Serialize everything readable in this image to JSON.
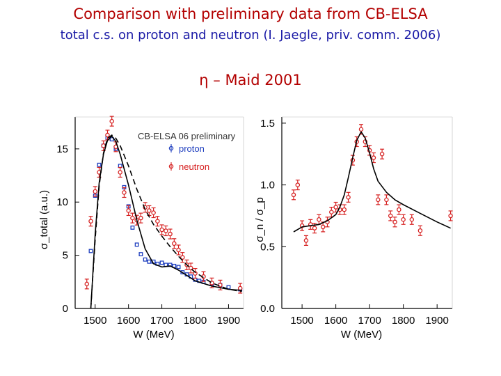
{
  "header": {
    "title": "Comparison with preliminary data from CB-ELSA",
    "subtitle": "total c.s. on proton and neutron (I. Jaegle, priv. comm. 2006)",
    "model_label": "η – Maid 2001"
  },
  "chart_data": [
    {
      "type": "scatter",
      "annotation": "CB-ELSA 06 preliminary",
      "xlabel": "W (MeV)",
      "ylabel": "σ_total (a.u.)",
      "xlim": [
        1440,
        1945
      ],
      "ylim": [
        0,
        18
      ],
      "x_ticks": [
        "1500",
        "1600",
        "1700",
        "1800",
        "1900"
      ],
      "y_ticks": [
        "0",
        "5",
        "10",
        "15"
      ],
      "legend": "top-right",
      "series": [
        {
          "name": "proton",
          "color": "#1f3fbf",
          "marker": "square",
          "x": [
            1487,
            1500,
            1512,
            1525,
            1537,
            1550,
            1562,
            1575,
            1587,
            1600,
            1612,
            1625,
            1637,
            1650,
            1662,
            1675,
            1687,
            1700,
            1712,
            1725,
            1737,
            1750,
            1762,
            1775,
            1787,
            1800,
            1812,
            1825,
            1850,
            1875,
            1900,
            1935
          ],
          "y": [
            5.4,
            10.6,
            13.5,
            15.3,
            16.0,
            15.9,
            15.0,
            13.4,
            11.4,
            9.6,
            7.6,
            6.0,
            5.1,
            4.6,
            4.4,
            4.4,
            4.2,
            4.3,
            4.1,
            4.1,
            4.0,
            3.9,
            3.4,
            3.2,
            3.0,
            2.7,
            2.6,
            2.5,
            2.3,
            2.2,
            2.0,
            1.8
          ]
        },
        {
          "name": "neutron",
          "color": "#d62020",
          "marker": "circle",
          "x": [
            1475,
            1487,
            1500,
            1512,
            1525,
            1537,
            1550,
            1562,
            1575,
            1587,
            1600,
            1612,
            1625,
            1637,
            1650,
            1662,
            1675,
            1687,
            1700,
            1712,
            1725,
            1737,
            1750,
            1762,
            1775,
            1787,
            1800,
            1825,
            1850,
            1875,
            1935
          ],
          "y": [
            2.3,
            8.2,
            11.0,
            12.8,
            15.3,
            16.3,
            17.6,
            15.2,
            12.8,
            10.9,
            9.2,
            8.5,
            8.3,
            8.5,
            9.5,
            9.2,
            9.0,
            8.2,
            7.4,
            7.3,
            7.0,
            6.1,
            5.5,
            4.8,
            4.1,
            3.8,
            3.3,
            3.0,
            2.4,
            2.2,
            1.9
          ]
        },
        {
          "name": "",
          "style": "solid",
          "color": "#000000",
          "x": [
            1487,
            1500,
            1512,
            1525,
            1537,
            1550,
            1562,
            1575,
            1600,
            1625,
            1650,
            1675,
            1700,
            1725,
            1750,
            1775,
            1800,
            1850,
            1900,
            1940
          ],
          "y": [
            0.0,
            7.0,
            11.8,
            14.5,
            15.8,
            16.2,
            15.7,
            14.5,
            11.6,
            8.3,
            5.6,
            4.2,
            3.9,
            4.0,
            3.6,
            3.1,
            2.6,
            2.1,
            1.8,
            1.7
          ]
        },
        {
          "name": "",
          "style": "dashed",
          "color": "#000000",
          "x": [
            1487,
            1500,
            1512,
            1525,
            1537,
            1550,
            1562,
            1575,
            1600,
            1625,
            1650,
            1675,
            1700,
            1725,
            1750,
            1775,
            1800,
            1850,
            1900,
            1940
          ],
          "y": [
            0.0,
            6.5,
            11.5,
            14.6,
            16.0,
            16.3,
            16.0,
            15.3,
            13.4,
            11.2,
            9.3,
            7.9,
            6.8,
            5.8,
            4.9,
            4.1,
            3.4,
            2.4,
            1.8,
            1.6
          ]
        }
      ]
    },
    {
      "type": "scatter",
      "xlabel": "W (MeV)",
      "ylabel": "σ_n / σ_p",
      "xlim": [
        1440,
        1945
      ],
      "ylim": [
        0,
        1.55
      ],
      "x_ticks": [
        "1500",
        "1600",
        "1700",
        "1800",
        "1900"
      ],
      "y_ticks": [
        "0.0",
        "0.5",
        "1.0",
        "1.5"
      ],
      "series": [
        {
          "name": "",
          "color": "#d62020",
          "marker": "circle",
          "x": [
            1475,
            1487,
            1500,
            1512,
            1525,
            1537,
            1550,
            1562,
            1575,
            1587,
            1600,
            1612,
            1625,
            1637,
            1650,
            1662,
            1675,
            1687,
            1700,
            1712,
            1725,
            1737,
            1750,
            1762,
            1775,
            1787,
            1800,
            1825,
            1850,
            1940
          ],
          "y": [
            0.92,
            1.0,
            0.67,
            0.55,
            0.68,
            0.65,
            0.72,
            0.66,
            0.7,
            0.78,
            0.82,
            0.8,
            0.8,
            0.9,
            1.2,
            1.35,
            1.45,
            1.35,
            1.28,
            1.22,
            0.88,
            1.25,
            0.88,
            0.75,
            0.7,
            0.8,
            0.72,
            0.72,
            0.63,
            0.75
          ]
        },
        {
          "name": "",
          "style": "solid",
          "color": "#000000",
          "x": [
            1475,
            1500,
            1525,
            1550,
            1575,
            1600,
            1612,
            1625,
            1637,
            1650,
            1662,
            1675,
            1687,
            1700,
            1712,
            1725,
            1750,
            1775,
            1800,
            1850,
            1900,
            1940
          ],
          "y": [
            0.62,
            0.66,
            0.67,
            0.68,
            0.71,
            0.76,
            0.82,
            0.92,
            1.06,
            1.22,
            1.36,
            1.43,
            1.38,
            1.26,
            1.13,
            1.03,
            0.94,
            0.88,
            0.84,
            0.77,
            0.7,
            0.65
          ]
        }
      ]
    }
  ]
}
